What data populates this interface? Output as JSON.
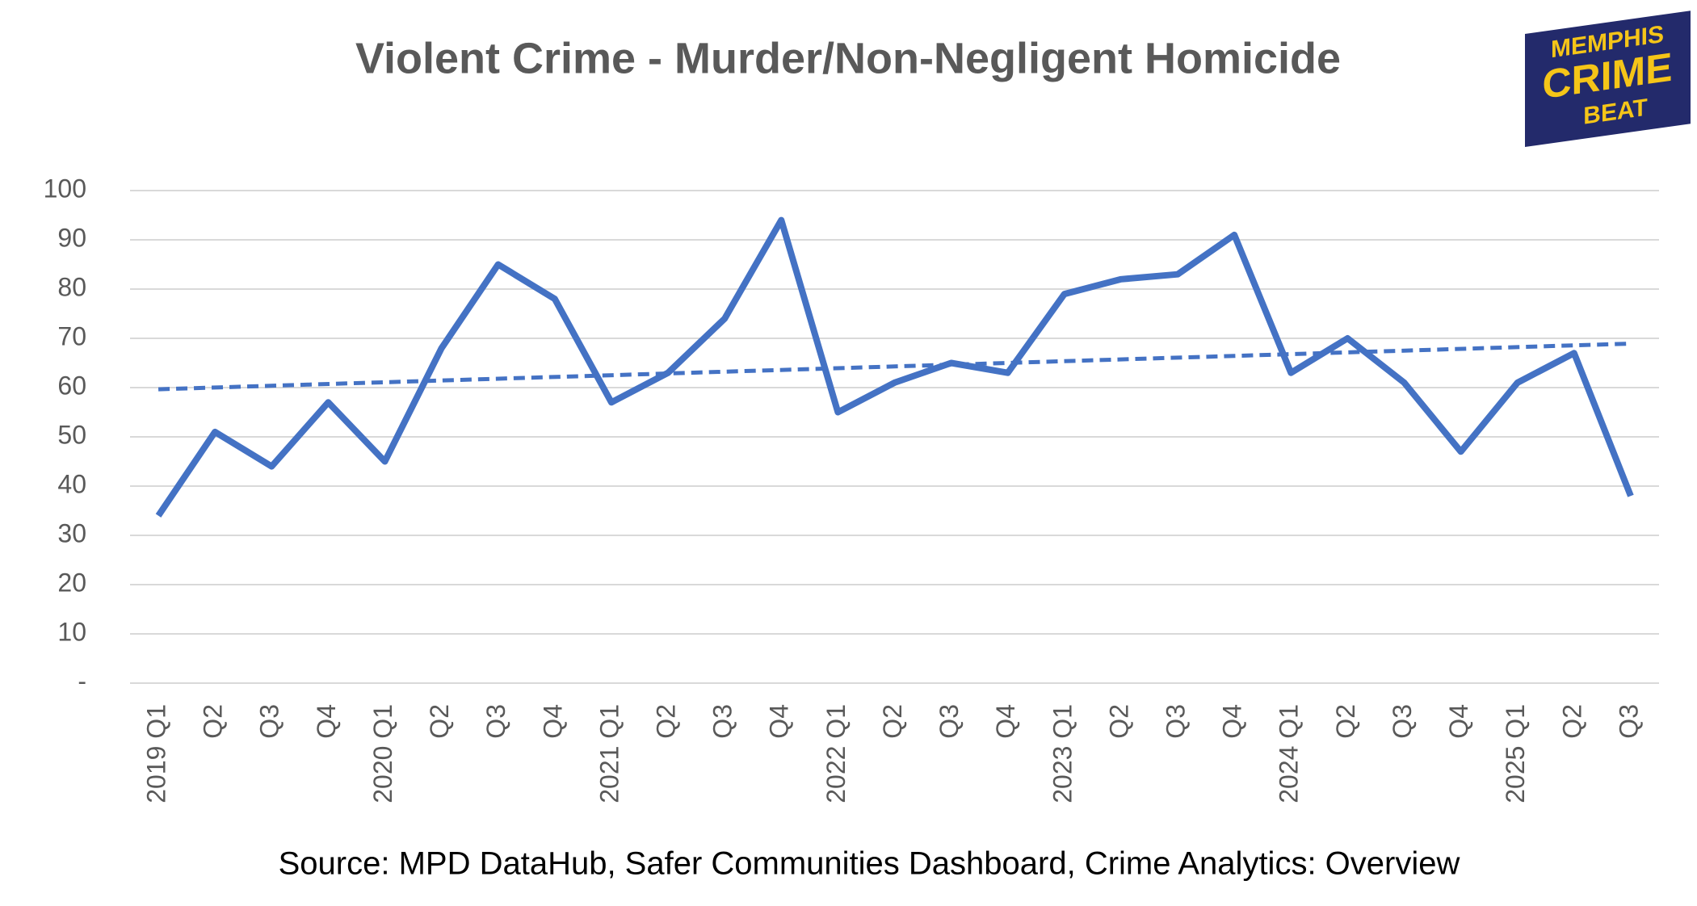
{
  "chart_data": {
    "type": "line",
    "title": "Violent Crime - Murder/Non-Negligent Homicide",
    "source": "Source: MPD DataHub, Safer Communities Dashboard,  Crime Analytics: Overview",
    "categories": [
      "2019 Q1",
      "Q2",
      "Q3",
      "Q4",
      "2020 Q1",
      "Q2",
      "Q3",
      "Q4",
      "2021 Q1",
      "Q2",
      "Q3",
      "Q4",
      "2022 Q1",
      "Q2",
      "Q3",
      "Q4",
      "2023 Q1",
      "Q2",
      "Q3",
      "Q4",
      "2024 Q1",
      "Q2",
      "Q3",
      "Q4",
      "2025 Q1",
      "Q2",
      "Q3"
    ],
    "values": [
      34,
      51,
      44,
      57,
      45,
      68,
      85,
      78,
      57,
      63,
      74,
      94,
      55,
      61,
      65,
      63,
      79,
      82,
      83,
      91,
      63,
      70,
      61,
      47,
      61,
      67,
      38
    ],
    "color": "#4472c4",
    "trendline": "linear",
    "ylim": [
      0,
      100
    ],
    "yticks": [
      {
        "value": 0,
        "label": "-"
      },
      10,
      20,
      30,
      40,
      50,
      60,
      70,
      80,
      90,
      100
    ],
    "grid": true
  },
  "logo": [
    "MEMPHIS",
    "CRIME",
    "BEAT"
  ]
}
